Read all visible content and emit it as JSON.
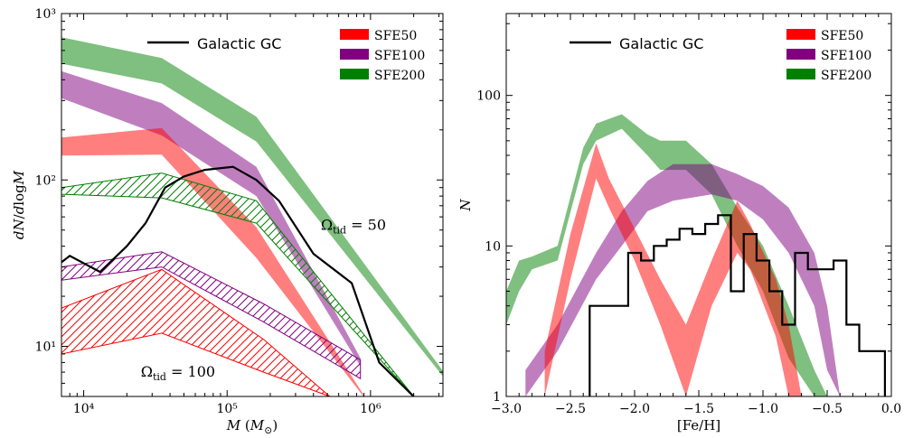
{
  "colors": {
    "SFE50": "#ff0000",
    "SFE100": "#800080",
    "SFE200": "#008000",
    "observed": "#000000"
  },
  "chart_data": [
    {
      "type": "area",
      "panel": "left",
      "xlabel": "M (M_⊙)",
      "ylabel": "dN/dlogM",
      "xscale": "log",
      "yscale": "log",
      "xlim": [
        7000,
        3200000
      ],
      "ylim": [
        5,
        1000
      ],
      "xticks": [
        10000,
        100000,
        1000000
      ],
      "xtick_labels": [
        "10⁴",
        "10⁵",
        "10⁶"
      ],
      "yticks": [
        10,
        100,
        1000
      ],
      "ytick_labels": [
        "10¹",
        "10²",
        "10³"
      ],
      "grid": false,
      "legend_position": "top-right",
      "legend": [
        {
          "label": "Galactic GC",
          "style": "line"
        },
        {
          "label": "SFE50",
          "style": "patch"
        },
        {
          "label": "SFE100",
          "style": "patch"
        },
        {
          "label": "SFE200",
          "style": "patch"
        }
      ],
      "annotations": [
        {
          "text": "Ω",
          "sub": "tid",
          "rest": " = 50",
          "x": 450000,
          "y": 50
        },
        {
          "text": "Ω",
          "sub": "tid",
          "rest": " = 100",
          "x": 25000,
          "y": 6.6
        }
      ],
      "series": [
        {
          "name": "SFE200",
          "kind": "band",
          "colorKey": "SFE200",
          "x": [
            7000,
            35000,
            160000,
            3200000
          ],
          "upper": [
            720,
            540,
            240,
            7.1
          ],
          "lower": [
            500,
            380,
            170,
            6.6
          ]
        },
        {
          "name": "SFE100",
          "kind": "band",
          "colorKey": "SFE100",
          "x": [
            7000,
            35000,
            160000,
            850000
          ],
          "upper": [
            450,
            290,
            120,
            8.5
          ],
          "lower": [
            310,
            185,
            80,
            7.6
          ]
        },
        {
          "name": "SFE50",
          "kind": "band",
          "colorKey": "SFE50",
          "x": [
            7000,
            35000,
            160000,
            1000000
          ],
          "upper": [
            180,
            205,
            52,
            4.4
          ],
          "lower": [
            140,
            142,
            34,
            4.4
          ]
        },
        {
          "name": "SFE200",
          "kind": "hatched",
          "colorKey": "SFE200",
          "x": [
            7000,
            35000,
            160000,
            2000000
          ],
          "upper": [
            90,
            110,
            75,
            5
          ],
          "lower": [
            82,
            78,
            55,
            5
          ]
        },
        {
          "name": "SFE100",
          "kind": "hatched",
          "colorKey": "SFE100",
          "x": [
            7000,
            35000,
            180000,
            850000
          ],
          "upper": [
            30,
            37,
            18,
            8.3
          ],
          "lower": [
            25,
            30,
            14,
            6.4
          ]
        },
        {
          "name": "SFE50",
          "kind": "hatched",
          "colorKey": "SFE50",
          "x": [
            7000,
            35000,
            180000,
            520000
          ],
          "upper": [
            17,
            29,
            11,
            5
          ],
          "lower": [
            9,
            12,
            7,
            5
          ]
        },
        {
          "name": "Galactic GC",
          "kind": "line",
          "colorKey": "observed",
          "x": [
            7000,
            8000,
            13000,
            20000,
            27000,
            37000,
            50000,
            70000,
            110000,
            160000,
            230000,
            400000,
            740000,
            1150000,
            2000000
          ],
          "y": [
            32,
            35,
            28,
            40,
            55,
            90,
            105,
            115,
            120,
            100,
            75,
            36,
            24,
            8,
            5
          ]
        }
      ]
    },
    {
      "type": "area",
      "panel": "right",
      "xlabel": "[Fe/H]",
      "ylabel": "N",
      "xscale": "linear",
      "yscale": "log",
      "xlim": [
        -3.0,
        0.0
      ],
      "ylim": [
        1,
        350
      ],
      "xticks": [
        -3.0,
        -2.5,
        -2.0,
        -1.5,
        -1.0,
        -0.5,
        0.0
      ],
      "xtick_labels": [
        "−3.0",
        "−2.5",
        "−2.0",
        "−1.5",
        "−1.0",
        "−0.5",
        "0.0"
      ],
      "yticks": [
        1,
        10,
        100
      ],
      "ytick_labels": [
        "1",
        "10",
        "100"
      ],
      "grid": false,
      "legend_position": "top-right",
      "legend": [
        {
          "label": "Galactic GC",
          "style": "line"
        },
        {
          "label": "SFE50",
          "style": "patch"
        },
        {
          "label": "SFE100",
          "style": "patch"
        },
        {
          "label": "SFE200",
          "style": "patch"
        }
      ],
      "series": [
        {
          "name": "SFE200",
          "kind": "band",
          "colorKey": "SFE200",
          "x": [
            -3.0,
            -2.9,
            -2.8,
            -2.6,
            -2.4,
            -2.3,
            -2.1,
            -1.9,
            -1.8,
            -1.6,
            -1.4,
            -1.2,
            -1.0,
            -0.8,
            -0.6,
            -0.5
          ],
          "upper": [
            5,
            8,
            8.5,
            10,
            45,
            65,
            75,
            55,
            50,
            50,
            35,
            18,
            10,
            4,
            1.5,
            1
          ],
          "lower": [
            3,
            5,
            7,
            8,
            35,
            50,
            60,
            40,
            32,
            32,
            22,
            10,
            5,
            1.8,
            1,
            1
          ]
        },
        {
          "name": "SFE100",
          "kind": "band",
          "colorKey": "SFE100",
          "x": [
            -2.85,
            -2.6,
            -2.3,
            -2.1,
            -1.9,
            -1.7,
            -1.4,
            -1.2,
            -1.0,
            -0.8,
            -0.6,
            -0.5,
            -0.4
          ],
          "upper": [
            1.5,
            3,
            9,
            17,
            27,
            35,
            35,
            30,
            25,
            18,
            9,
            4,
            1
          ],
          "lower": [
            1,
            2,
            6,
            10,
            17,
            20,
            22,
            20,
            15,
            9,
            4,
            1.5,
            1
          ]
        },
        {
          "name": "SFE50",
          "kind": "band",
          "colorKey": "SFE50",
          "x": [
            -2.7,
            -2.5,
            -2.3,
            -2.2,
            -2.0,
            -1.8,
            -1.6,
            -1.4,
            -1.2,
            -1.1,
            -0.9,
            -0.8,
            -0.7
          ],
          "upper": [
            2,
            12,
            48,
            28,
            13,
            6,
            3,
            8,
            20,
            14,
            6,
            3,
            1
          ],
          "lower": [
            1,
            6,
            28,
            18,
            8,
            3,
            1,
            4,
            9,
            7,
            2.5,
            1,
            1
          ]
        },
        {
          "name": "Galactic GC",
          "kind": "step",
          "colorKey": "observed",
          "edges": [
            -2.35,
            -2.05,
            -1.95,
            -1.85,
            -1.75,
            -1.65,
            -1.55,
            -1.45,
            -1.35,
            -1.25,
            -1.15,
            -1.05,
            -0.95,
            -0.85,
            -0.75,
            -0.65,
            -0.55,
            -0.45,
            -0.35,
            -0.25,
            -0.15,
            -0.05
          ],
          "counts": [
            4,
            9,
            8,
            10,
            11,
            13,
            12,
            14,
            16,
            5,
            12,
            8,
            5,
            3,
            9,
            7,
            7,
            8,
            3,
            2,
            2
          ]
        }
      ]
    }
  ]
}
